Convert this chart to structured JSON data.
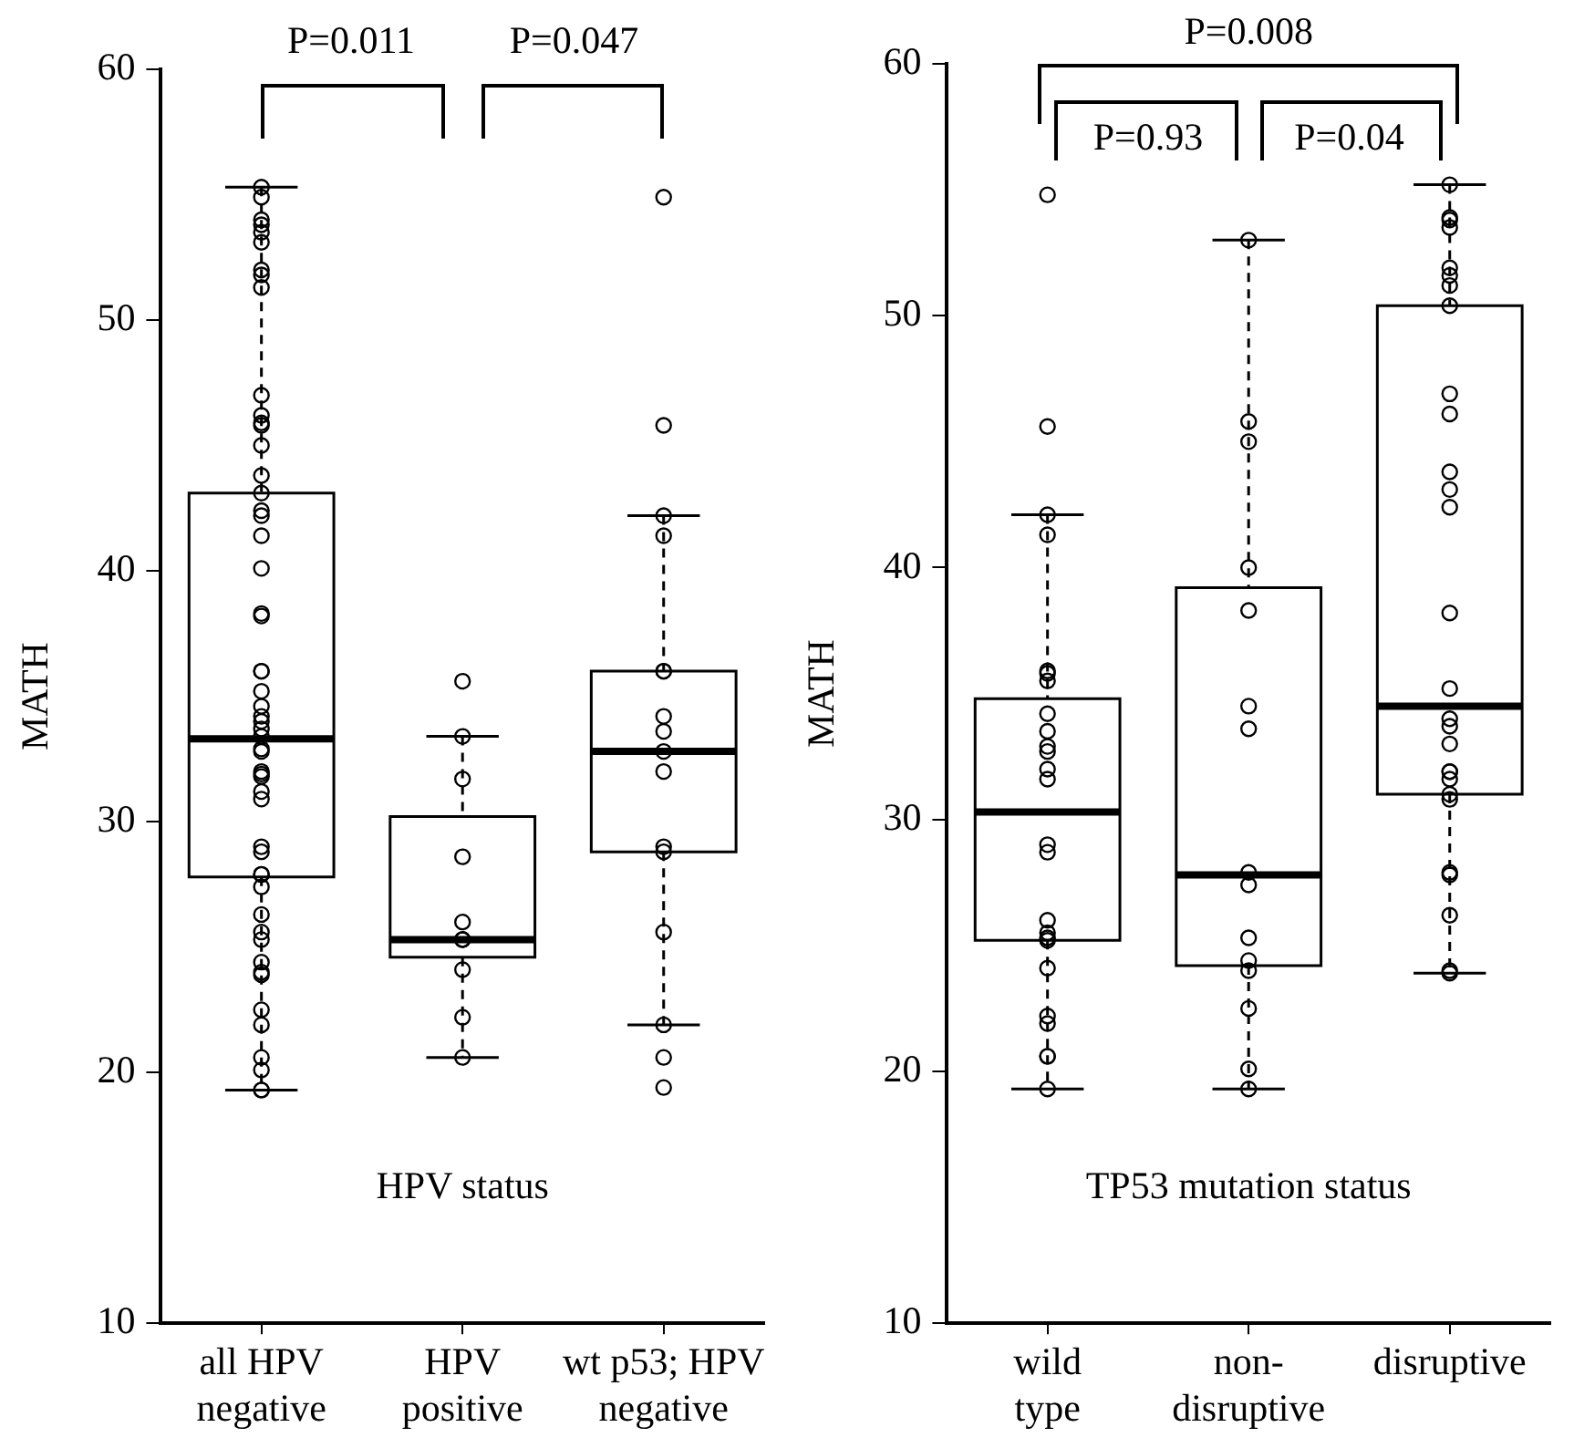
{
  "chart_data": [
    {
      "type": "box",
      "categories": [
        "all HPV negative",
        "HPV positive",
        "wt p53; HPV negative"
      ],
      "boxes": [
        {
          "low": 19.3,
          "q1": 27.8,
          "median": 33.3,
          "q3": 43.1,
          "high": 55.3
        },
        {
          "low": 20.6,
          "q1": 24.6,
          "median": 25.3,
          "q3": 30.2,
          "high": 33.4
        },
        {
          "low": 21.9,
          "q1": 28.8,
          "median": 32.8,
          "q3": 36.0,
          "high": 42.2
        }
      ],
      "series": [
        {
          "type": "scatter",
          "color": "#000000",
          "x": [
            "all HPV negative",
            "all HPV negative",
            "all HPV negative",
            "all HPV negative",
            "all HPV negative",
            "all HPV negative",
            "all HPV negative",
            "all HPV negative",
            "all HPV negative",
            "all HPV negative",
            "all HPV negative",
            "all HPV negative",
            "all HPV negative",
            "all HPV negative",
            "all HPV negative",
            "all HPV negative",
            "all HPV negative",
            "all HPV negative",
            "all HPV negative",
            "all HPV negative",
            "all HPV negative",
            "all HPV negative",
            "all HPV negative",
            "all HPV negative",
            "all HPV negative",
            "all HPV negative",
            "all HPV negative",
            "all HPV negative",
            "all HPV negative",
            "all HPV negative",
            "all HPV negative",
            "all HPV negative",
            "all HPV negative",
            "all HPV negative",
            "all HPV negative",
            "all HPV negative",
            "all HPV negative",
            "all HPV negative",
            "all HPV negative",
            "all HPV negative",
            "all HPV negative",
            "all HPV negative",
            "all HPV negative",
            "all HPV negative",
            "all HPV negative",
            "all HPV negative",
            "all HPV negative",
            "all HPV negative",
            "all HPV negative",
            "all HPV negative",
            "all HPV negative",
            "all HPV negative",
            "all HPV negative",
            "all HPV negative",
            "HPV positive",
            "HPV positive",
            "HPV positive",
            "HPV positive",
            "HPV positive",
            "HPV positive",
            "HPV positive",
            "HPV positive",
            "HPV positive",
            "HPV positive",
            "HPV positive",
            "wt p53; HPV negative",
            "wt p53; HPV negative",
            "wt p53; HPV negative",
            "wt p53; HPV negative",
            "wt p53; HPV negative",
            "wt p53; HPV negative",
            "wt p53; HPV negative",
            "wt p53; HPV negative",
            "wt p53; HPV negative",
            "wt p53; HPV negative",
            "wt p53; HPV negative",
            "wt p53; HPV negative",
            "wt p53; HPV negative",
            "wt p53; HPV negative",
            "wt p53; HPV negative",
            "wt p53; HPV negative"
          ],
          "values": [
            55.3,
            54.9,
            54.0,
            53.8,
            53.5,
            53.1,
            52.0,
            51.8,
            51.3,
            47.0,
            46.2,
            45.9,
            45.8,
            45.0,
            43.8,
            43.1,
            42.4,
            42.2,
            41.4,
            40.1,
            38.3,
            38.2,
            36.0,
            36.0,
            35.2,
            34.6,
            34.2,
            34.0,
            33.7,
            33.4,
            32.9,
            32.8,
            32.0,
            31.9,
            31.8,
            31.2,
            30.9,
            29.0,
            28.8,
            27.9,
            27.9,
            27.4,
            26.3,
            25.6,
            25.3,
            24.4,
            24.0,
            23.9,
            22.5,
            21.9,
            20.6,
            20.1,
            19.3,
            19.3,
            35.6,
            33.4,
            31.7,
            28.6,
            26.0,
            25.3,
            25.3,
            25.3,
            24.1,
            22.2,
            20.6,
            54.9,
            45.8,
            42.2,
            41.4,
            36.0,
            36.0,
            34.2,
            33.6,
            32.8,
            32.0,
            29.0,
            28.8,
            25.6,
            21.9,
            20.6,
            19.4
          ]
        }
      ],
      "marker": "circle",
      "ylabel": "MATH",
      "xlabel": "HPV status",
      "ylim": [
        10,
        60
      ],
      "yticks": [
        10,
        20,
        30,
        40,
        50,
        60
      ],
      "annotations": [
        "P=0.011",
        "P=0.047"
      ]
    },
    {
      "type": "box",
      "categories": [
        "wild type",
        "non-disruptive",
        "disruptive"
      ],
      "boxes": [
        {
          "low": 19.3,
          "q1": 25.2,
          "median": 30.3,
          "q3": 34.8,
          "high": 42.1
        },
        {
          "low": 19.3,
          "q1": 24.2,
          "median": 27.8,
          "q3": 39.2,
          "high": 53.0
        },
        {
          "low": 23.9,
          "q1": 31.0,
          "median": 34.5,
          "q3": 50.4,
          "high": 55.2
        }
      ],
      "series": [
        {
          "type": "scatter",
          "color": "#000000",
          "x": [
            "wild type",
            "wild type",
            "wild type",
            "wild type",
            "wild type",
            "wild type",
            "wild type",
            "wild type",
            "wild type",
            "wild type",
            "wild type",
            "wild type",
            "wild type",
            "wild type",
            "wild type",
            "wild type",
            "wild type",
            "wild type",
            "wild type",
            "wild type",
            "wild type",
            "wild type",
            "wild type",
            "wild type",
            "wild type",
            "non-disruptive",
            "non-disruptive",
            "non-disruptive",
            "non-disruptive",
            "non-disruptive",
            "non-disruptive",
            "non-disruptive",
            "non-disruptive",
            "non-disruptive",
            "non-disruptive",
            "non-disruptive",
            "non-disruptive",
            "non-disruptive",
            "non-disruptive",
            "non-disruptive",
            "disruptive",
            "disruptive",
            "disruptive",
            "disruptive",
            "disruptive",
            "disruptive",
            "disruptive",
            "disruptive",
            "disruptive",
            "disruptive",
            "disruptive",
            "disruptive",
            "disruptive",
            "disruptive",
            "disruptive",
            "disruptive",
            "disruptive",
            "disruptive",
            "disruptive",
            "disruptive",
            "disruptive",
            "disruptive",
            "disruptive",
            "disruptive",
            "disruptive",
            "disruptive",
            "disruptive",
            "disruptive"
          ],
          "values": [
            54.8,
            45.6,
            42.1,
            41.3,
            35.9,
            35.8,
            35.5,
            34.2,
            33.5,
            32.9,
            32.7,
            32.0,
            31.6,
            29.0,
            28.7,
            26.0,
            25.5,
            25.3,
            25.2,
            24.1,
            22.2,
            21.9,
            20.6,
            20.6,
            19.3,
            53.0,
            45.8,
            45.0,
            40.0,
            38.3,
            34.5,
            33.6,
            27.9,
            27.4,
            25.3,
            24.4,
            24.0,
            22.5,
            20.1,
            19.3,
            55.2,
            53.9,
            53.8,
            53.5,
            51.9,
            51.6,
            51.2,
            50.4,
            46.9,
            46.1,
            43.8,
            43.1,
            42.4,
            38.2,
            35.2,
            34.0,
            33.7,
            33.0,
            31.9,
            31.9,
            31.6,
            31.0,
            30.8,
            27.9,
            27.8,
            26.2,
            24.0,
            23.9
          ]
        }
      ],
      "marker": "circle",
      "ylabel": "MATH",
      "xlabel": "TP53 mutation status",
      "ylim": [
        10,
        60
      ],
      "yticks": [
        10,
        20,
        30,
        40,
        50,
        60
      ],
      "annotations": [
        "P=0.008",
        "P=0.93",
        "P=0.04"
      ]
    }
  ]
}
